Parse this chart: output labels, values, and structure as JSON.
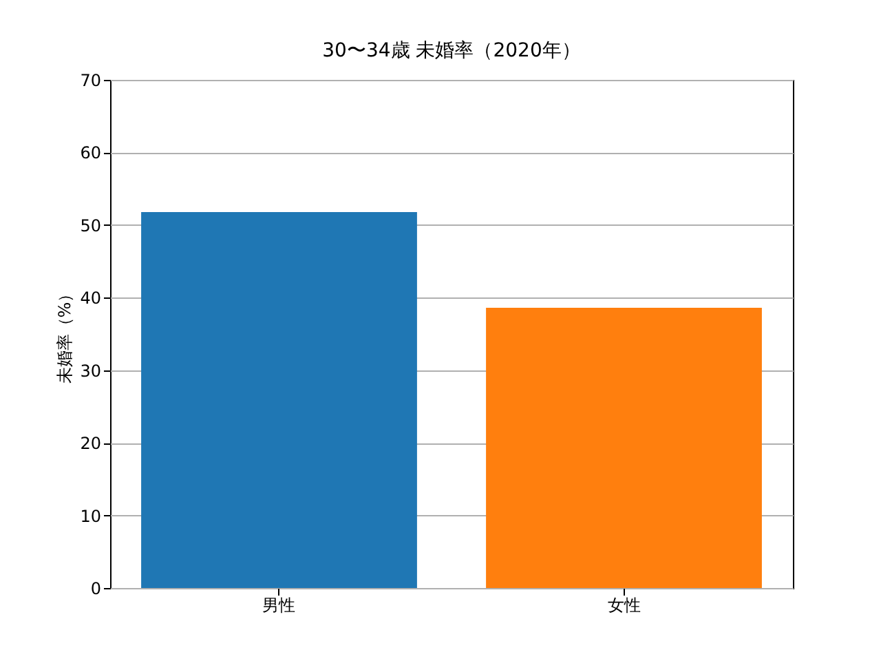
{
  "chart_data": {
    "type": "bar",
    "title": "30〜34歳 未婚率（2020年）",
    "ylabel": "未婚率（%）",
    "categories": [
      "男性",
      "女性"
    ],
    "values": [
      51.8,
      38.6
    ],
    "colors": [
      "#1f77b4",
      "#ff7f0e"
    ],
    "ylim": [
      0,
      70
    ],
    "yticks": [
      0,
      10,
      20,
      30,
      40,
      50,
      60,
      70
    ],
    "grid": "y",
    "legend": false
  }
}
